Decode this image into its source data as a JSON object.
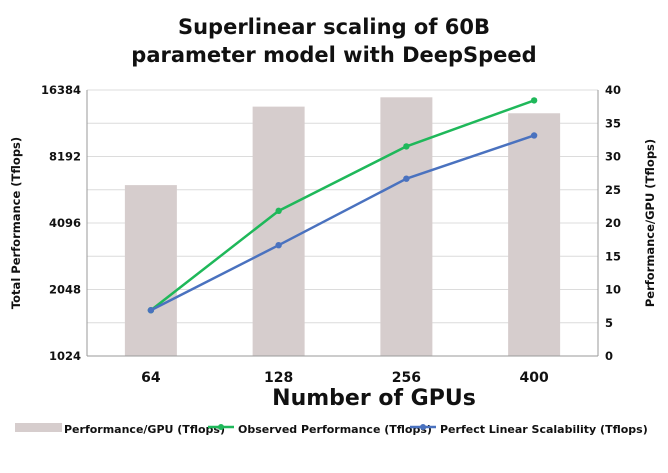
{
  "chart_data": {
    "type": "bar",
    "title": [
      "Superlinear scaling of 60B",
      "parameter model with DeepSpeed"
    ],
    "xlabel": "Number of GPUs",
    "ylabel_left": "Total Performance (Tflops)",
    "ylabel_right": "Performance/GPU (Tflops)",
    "categories": [
      "64",
      "128",
      "256",
      "400"
    ],
    "y_left": {
      "scale": "log2",
      "ticks": [
        "1024",
        "2048",
        "4096",
        "8192",
        "16384"
      ],
      "range": [
        1024,
        16384
      ]
    },
    "y_right": {
      "scale": "linear",
      "ticks": [
        "0",
        "5",
        "10",
        "15",
        "20",
        "25",
        "30",
        "35",
        "40"
      ],
      "range": [
        0,
        40
      ]
    },
    "grid": "horizontal",
    "legend_position": "bottom",
    "series": [
      {
        "name": "Performance/GPU (Tflops)",
        "type": "bar",
        "axis": "right",
        "color": "#d6cdcd",
        "values": [
          25.7,
          37.5,
          38.9,
          36.5
        ]
      },
      {
        "name": "Observed Performance (Tflops)",
        "type": "line",
        "axis": "left",
        "color": "#1fb85a",
        "values": [
          1650,
          4650,
          9100,
          14700
        ]
      },
      {
        "name": "Perfect Linear Scalability (Tflops)",
        "type": "line",
        "axis": "left",
        "color": "#4a72bf",
        "values": [
          1650,
          3250,
          6500,
          10200
        ]
      }
    ]
  }
}
